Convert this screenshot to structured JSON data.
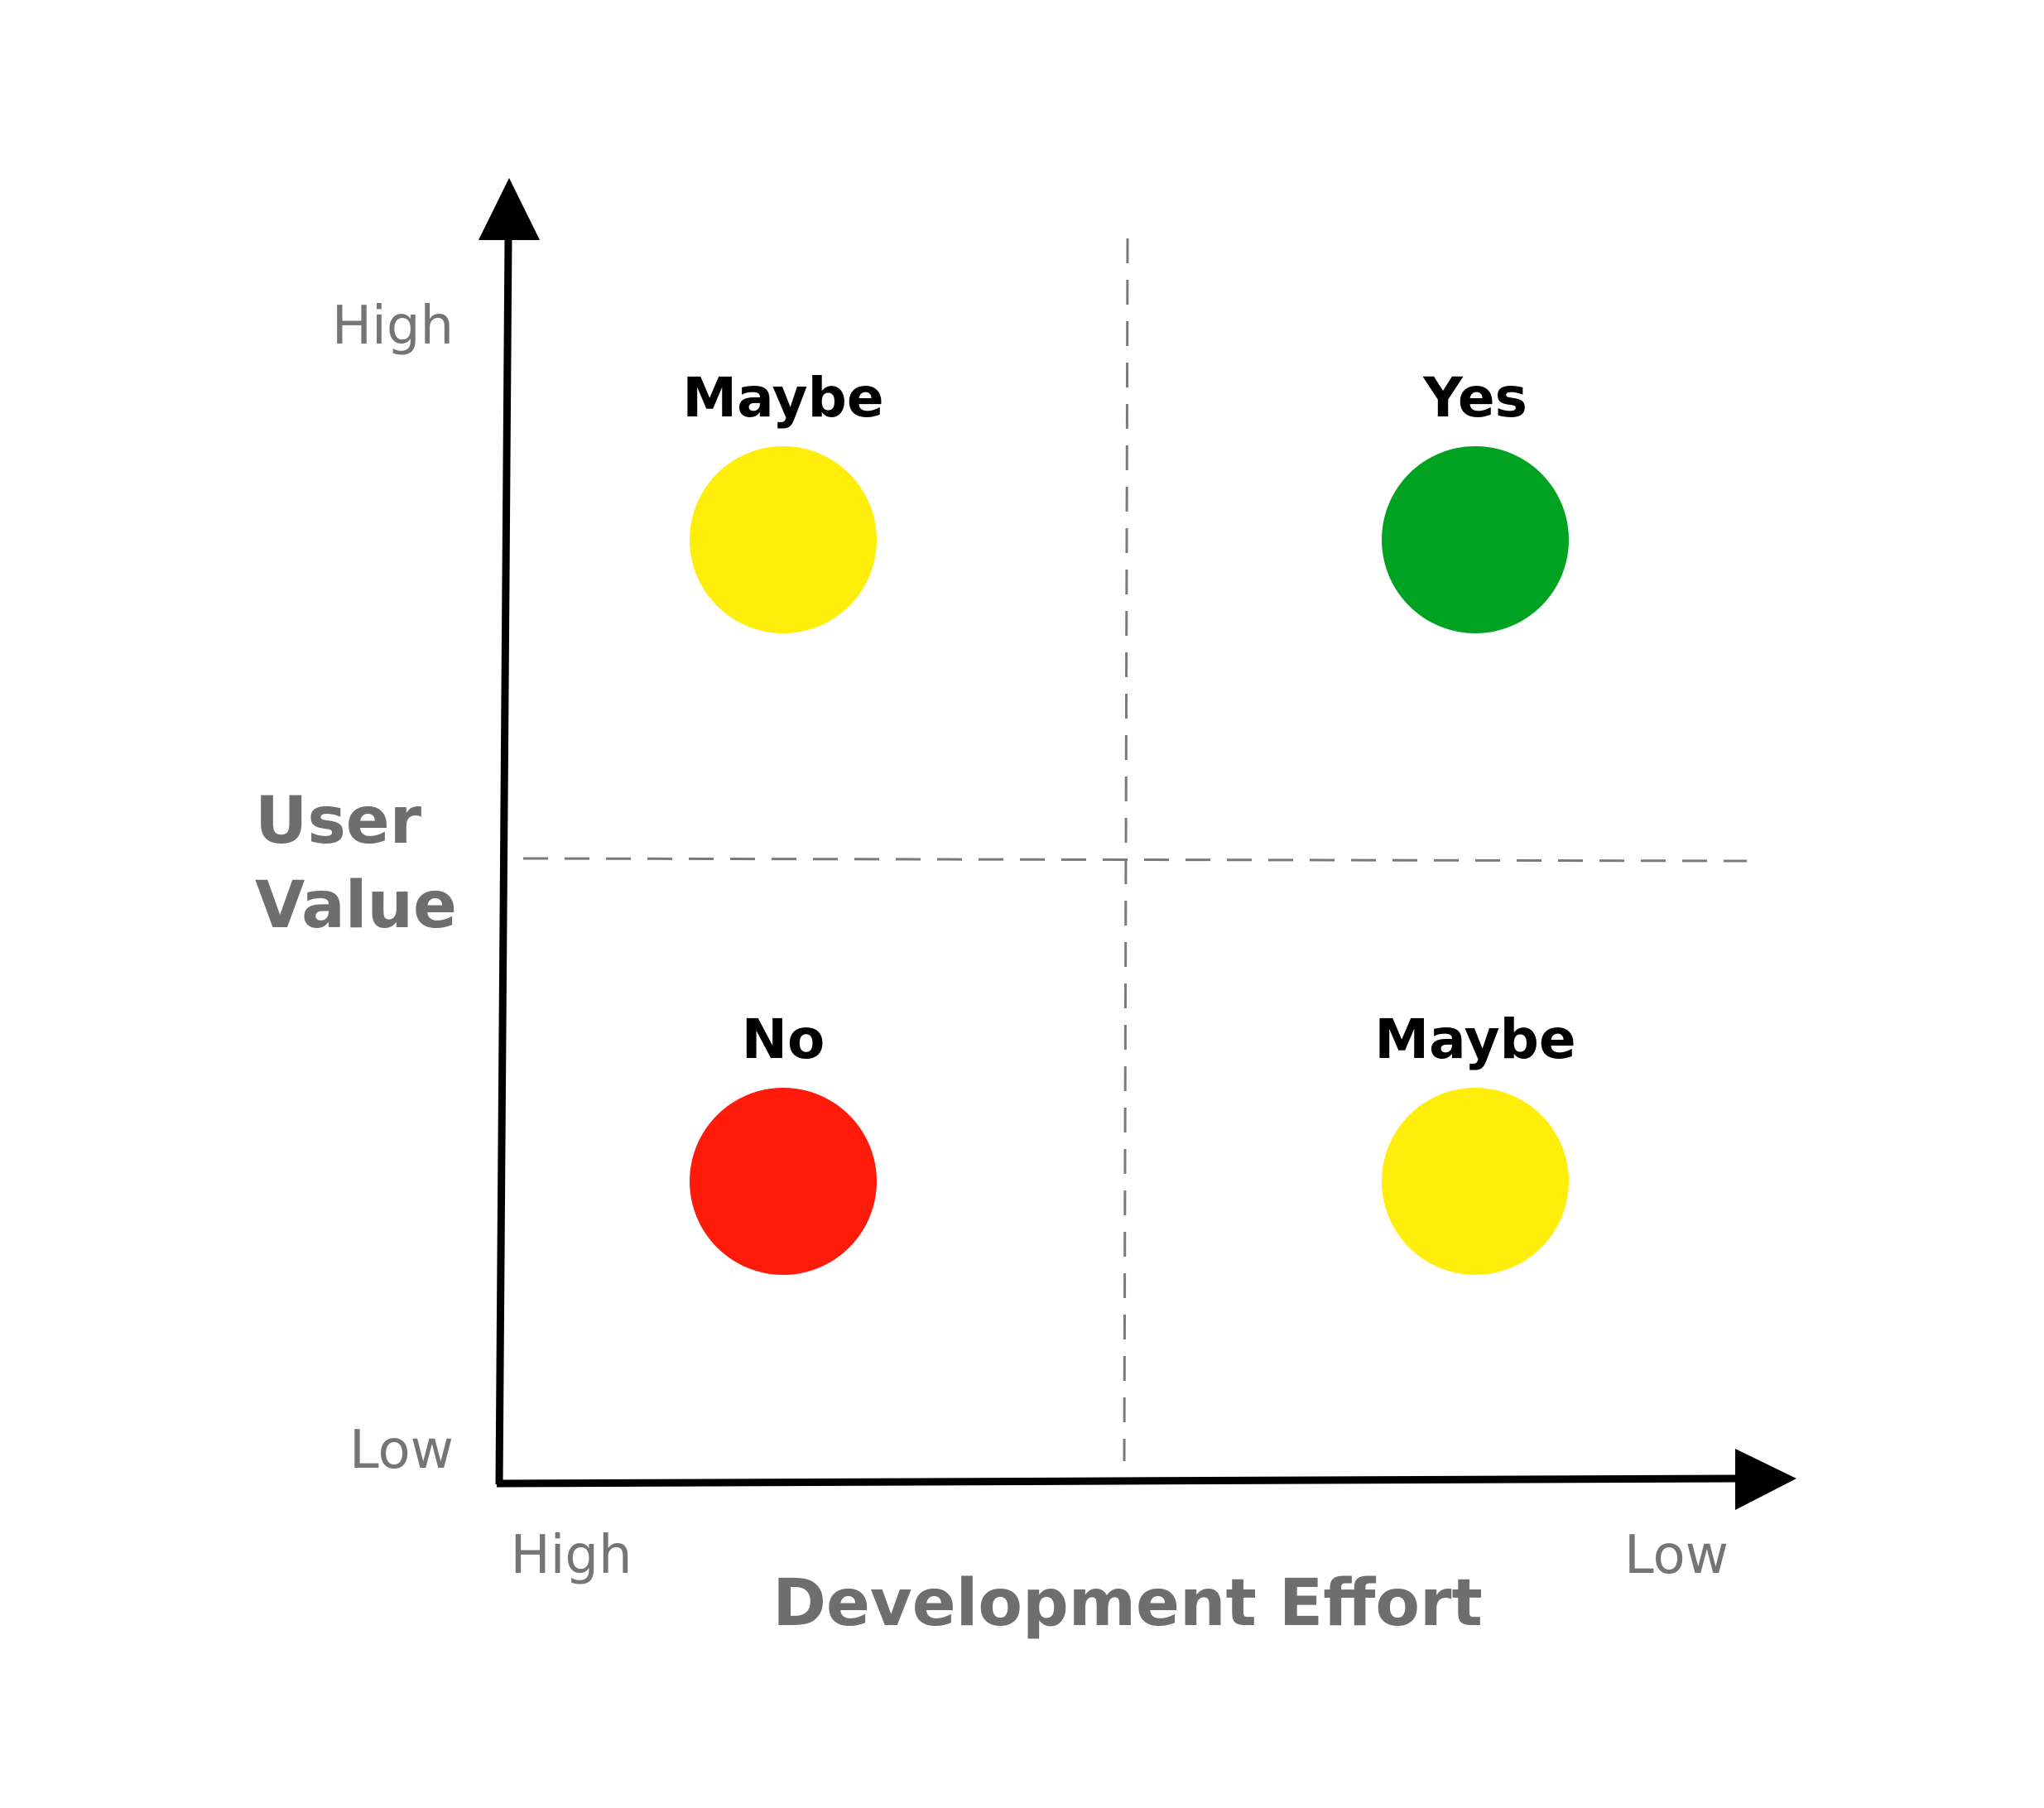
{
  "y_axis": {
    "title_line1": "User",
    "title_line2": "Value",
    "high_label": "High",
    "low_label": "Low"
  },
  "x_axis": {
    "title": "Development Effort",
    "high_label": "High",
    "low_label": "Low"
  },
  "quadrants": {
    "top_left": {
      "label": "Maybe",
      "color": "#FFEE0A"
    },
    "top_right": {
      "label": "Yes",
      "color": "#00A321"
    },
    "bottom_left": {
      "label": "No",
      "color": "#FF1A0A"
    },
    "bottom_right": {
      "label": "Maybe",
      "color": "#FFEE0A"
    }
  },
  "colors": {
    "axis": "#000000",
    "divider": "#7a7a7a",
    "axis_text": "#757575"
  }
}
